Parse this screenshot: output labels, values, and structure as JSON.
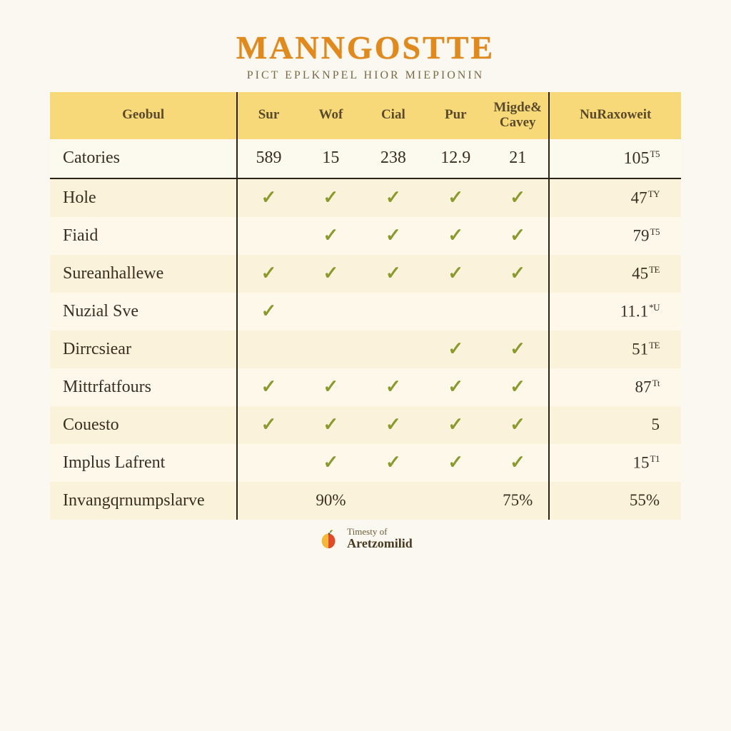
{
  "header": {
    "title": "MANNGOSTTE",
    "subtitle": "PICT EPLKNPEL HIOR MIEPIONIN"
  },
  "table": {
    "columns": [
      {
        "label": "Geobul"
      },
      {
        "label": "Sur"
      },
      {
        "label": "Wof"
      },
      {
        "label": "Cial"
      },
      {
        "label": "Pur"
      },
      {
        "label": "Migde& Cavey"
      },
      {
        "label": "NuRaxoweit"
      }
    ],
    "col_widths_pct": [
      27,
      9,
      9,
      9,
      9,
      9,
      19
    ],
    "vline_before_cols": [
      1,
      6
    ],
    "header_bg": "#f7d97a",
    "header_color": "#5a4a2a",
    "header_fontsize": 19,
    "stripe_odd_bg": "#fbf2db",
    "stripe_even_bg": "#fdf8ea",
    "numbers_row_bg": "#fcf9ef",
    "border_color": "#2b2214",
    "check_color": "#8a9a2e",
    "label_fontsize": 24,
    "cell_fontsize": 23,
    "rows": [
      {
        "type": "numbers",
        "label": "Catories",
        "cells": [
          "589",
          "15",
          "238",
          "12.9",
          "21"
        ],
        "end": "105",
        "end_sup": "T5"
      },
      {
        "type": "check",
        "stripe": "odd",
        "label": "Hole",
        "checks": [
          true,
          true,
          true,
          true,
          true
        ],
        "end": "47",
        "end_sup": "TY"
      },
      {
        "type": "check",
        "stripe": "even",
        "label": "Fiaid",
        "checks": [
          false,
          true,
          true,
          true,
          true
        ],
        "end": "79",
        "end_sup": "T5"
      },
      {
        "type": "check",
        "stripe": "odd",
        "label": "Sureanhallewe",
        "checks": [
          true,
          true,
          true,
          true,
          true
        ],
        "end": "45",
        "end_sup": "TE"
      },
      {
        "type": "check",
        "stripe": "even",
        "label": "Nuzial Sve",
        "checks": [
          true,
          false,
          false,
          false,
          false
        ],
        "end": "11.1",
        "end_sup": "*U"
      },
      {
        "type": "check",
        "stripe": "odd",
        "label": "Dirrcsiear",
        "checks": [
          false,
          false,
          false,
          true,
          true
        ],
        "end": "51",
        "end_sup": "TE"
      },
      {
        "type": "check",
        "stripe": "even",
        "label": "Mittrfatfours",
        "checks": [
          true,
          true,
          true,
          true,
          true
        ],
        "end": "87",
        "end_sup": "Tt"
      },
      {
        "type": "check",
        "stripe": "odd",
        "label": "Couesto",
        "checks": [
          true,
          true,
          true,
          true,
          true
        ],
        "end": "5",
        "end_sup": ""
      },
      {
        "type": "check",
        "stripe": "even",
        "label": "Implus Lafrent",
        "checks": [
          false,
          true,
          true,
          true,
          true
        ],
        "end": "15",
        "end_sup": "T1"
      },
      {
        "type": "text",
        "stripe": "odd",
        "label": "Invangqrnumpslarve",
        "cells": [
          "",
          "90%",
          "",
          "",
          "75%"
        ],
        "end": "55%",
        "end_sup": ""
      }
    ]
  },
  "footer": {
    "line1": "Timesty of",
    "line2": "Aretzomilid"
  },
  "colors": {
    "page_bg": "#faf8f0",
    "title_color": "#e08a1e",
    "subtitle_color": "#7a6a4a",
    "text_color": "#3a2e1f"
  }
}
